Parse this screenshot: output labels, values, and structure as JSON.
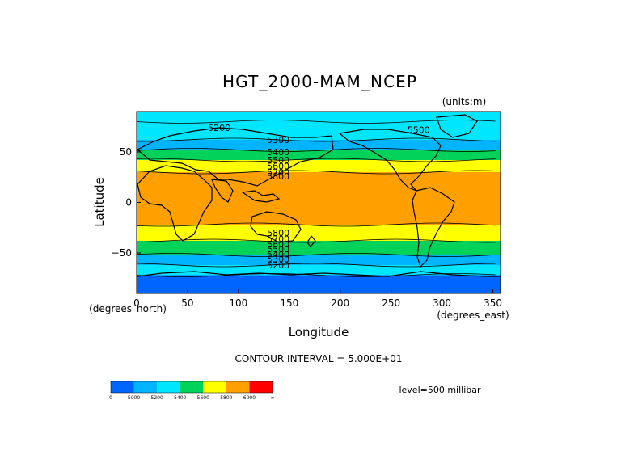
{
  "chart_data": {
    "type": "heatmap",
    "title": "HGT_2000-MAM_NCEP",
    "units_label": "(units:m)",
    "xlabel": "Longitude",
    "ylabel": "Latitude",
    "x_units_label": "(degrees_east)",
    "y_units_label": "(degrees_north)",
    "xlim": [
      0,
      357.5
    ],
    "ylim": [
      -90,
      90
    ],
    "x_ticks": [
      "0",
      "50",
      "100",
      "150",
      "200",
      "250",
      "300",
      "350"
    ],
    "y_ticks": [
      "50",
      "0",
      "−50"
    ],
    "grid": false,
    "contour_interval_text": "CONTOUR INTERVAL = 5.000E+01",
    "level_text": "level=500 millibar",
    "contour_labels": [
      {
        "text": "5200",
        "lon": 70,
        "lat": 74
      },
      {
        "text": "5300",
        "lon": 128,
        "lat": 62
      },
      {
        "text": "5400",
        "lon": 128,
        "lat": 50
      },
      {
        "text": "5500",
        "lon": 128,
        "lat": 42
      },
      {
        "text": "5600",
        "lon": 128,
        "lat": 36
      },
      {
        "text": "5700",
        "lon": 128,
        "lat": 30
      },
      {
        "text": "5800",
        "lon": 128,
        "lat": 26
      },
      {
        "text": "5500",
        "lon": 266,
        "lat": 72
      },
      {
        "text": "5800",
        "lon": 128,
        "lat": -30
      },
      {
        "text": "5700",
        "lon": 128,
        "lat": -36
      },
      {
        "text": "5600",
        "lon": 128,
        "lat": -41
      },
      {
        "text": "5500",
        "lon": 128,
        "lat": -46
      },
      {
        "text": "5400",
        "lon": 128,
        "lat": -51
      },
      {
        "text": "5300",
        "lon": 128,
        "lat": -56
      },
      {
        "text": "5200",
        "lon": 128,
        "lat": -62
      }
    ],
    "zonal_bands": [
      {
        "lat": [
          80,
          90
        ],
        "value_range": [
          5200,
          5300
        ],
        "color": "#00e6ff"
      },
      {
        "lat": [
          62,
          80
        ],
        "value_range": [
          5200,
          5300
        ],
        "color": "#00e6ff"
      },
      {
        "lat": [
          52,
          62
        ],
        "value_range": [
          5300,
          5400
        ],
        "color": "#00b4ff"
      },
      {
        "lat": [
          42,
          52
        ],
        "value_range": [
          5400,
          5600
        ],
        "color": "#00d25a"
      },
      {
        "lat": [
          30,
          42
        ],
        "value_range": [
          5600,
          5800
        ],
        "color": "#ffff00"
      },
      {
        "lat": [
          -22,
          30
        ],
        "value_range": [
          5800,
          6000
        ],
        "color": "#ffa000"
      },
      {
        "lat": [
          -38,
          -22
        ],
        "value_range": [
          5600,
          5800
        ],
        "color": "#ffff00"
      },
      {
        "lat": [
          -52,
          -38
        ],
        "value_range": [
          5400,
          5600
        ],
        "color": "#00d25a"
      },
      {
        "lat": [
          -62,
          -52
        ],
        "value_range": [
          5300,
          5400
        ],
        "color": "#00b4ff"
      },
      {
        "lat": [
          -72,
          -62
        ],
        "value_range": [
          5200,
          5300
        ],
        "color": "#00e6ff"
      },
      {
        "lat": [
          -90,
          -72
        ],
        "value_range": [
          0,
          5200
        ],
        "color": "#0064ff"
      }
    ],
    "colorbar": {
      "colors": [
        "#0064ff",
        "#00b4ff",
        "#00e6ff",
        "#00d25a",
        "#ffff00",
        "#ffa000",
        "#ff0000"
      ],
      "labels": [
        "0",
        "5000",
        "5200",
        "5400",
        "5600",
        "5800",
        "6000",
        "∞"
      ]
    }
  }
}
